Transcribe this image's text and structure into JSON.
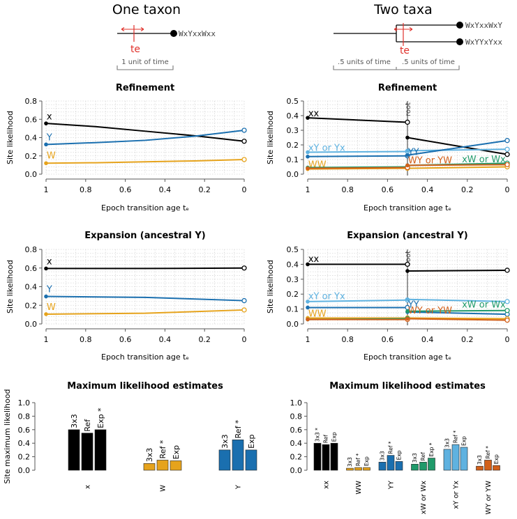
{
  "colors": {
    "x": "#000000",
    "Y": "#1a6faf",
    "W": "#e6a31c",
    "xY": "#5fb2e0",
    "xW": "#1f9a6a",
    "WY": "#d2601a",
    "te": "#e0302a",
    "grid": "#d8d8d8",
    "axis": "#555555",
    "scale": "#777777"
  },
  "trees": {
    "one": {
      "title": "One taxon",
      "tip": "WxYxxWxx",
      "te_label": "te",
      "scale": "1 unit of time"
    },
    "two": {
      "title": "Two taxa",
      "tips": [
        "WxYxxWxY",
        "WxYYxYxx"
      ],
      "te_label": "te",
      "scale_left": ".5 units of time",
      "scale_right": ".5 units of time"
    }
  },
  "chart_data": [
    {
      "id": "c1",
      "type": "line",
      "title": "Refinement",
      "xlabel": "Epoch transition age tₑ",
      "ylabel": "Site likelihood",
      "xlim": [
        1,
        0
      ],
      "ylim": [
        0,
        0.8
      ],
      "xticks": [
        "1",
        "0.8",
        "0.6",
        "0.4",
        "0.2",
        "0"
      ],
      "yticks": [
        "0.0",
        "0.2",
        "0.4",
        "0.6",
        "0.8"
      ],
      "root_line": false,
      "series": [
        {
          "name": "x",
          "color": "#000000",
          "x": [
            1,
            0.75,
            0.5,
            0.25,
            0
          ],
          "y": [
            0.555,
            0.52,
            0.47,
            0.42,
            0.36
          ],
          "lx": 0.99,
          "ly": 0.6
        },
        {
          "name": "Y",
          "color": "#1a6faf",
          "x": [
            1,
            0.75,
            0.5,
            0.25,
            0
          ],
          "y": [
            0.325,
            0.345,
            0.37,
            0.415,
            0.48
          ],
          "lx": 0.99,
          "ly": 0.37
        },
        {
          "name": "W",
          "color": "#e6a31c",
          "x": [
            1,
            0.75,
            0.5,
            0.25,
            0
          ],
          "y": [
            0.12,
            0.125,
            0.135,
            0.145,
            0.16
          ],
          "lx": 0.99,
          "ly": 0.17
        }
      ]
    },
    {
      "id": "c2",
      "type": "line",
      "title": "Refinement",
      "xlabel": "Epoch transition age tₑ",
      "ylabel": "Site likelihood",
      "xlim": [
        1,
        0
      ],
      "ylim": [
        0,
        0.5
      ],
      "xticks": [
        "1",
        "0.8",
        "0.6",
        "0.4",
        "0.2",
        "0"
      ],
      "yticks": [
        "0.0",
        "0.1",
        "0.2",
        "0.3",
        "0.4",
        "0.5"
      ],
      "root_line": true,
      "root_label": "root",
      "series": [
        {
          "name": "xx",
          "color": "#000000",
          "x": [
            1,
            0.5
          ],
          "y": [
            0.385,
            0.355
          ],
          "x2": [
            0.5,
            0
          ],
          "y2": [
            0.25,
            0.135
          ],
          "lx": 0.99,
          "ly": 0.395
        },
        {
          "name": "xY or Yx",
          "color": "#5fb2e0",
          "x": [
            1,
            0.5
          ],
          "y": [
            0.15,
            0.155
          ],
          "x2": [
            0.5,
            0
          ],
          "y2": [
            0.16,
            0.17
          ],
          "lx": 0.99,
          "ly": 0.16
        },
        {
          "name": "YY",
          "color": "#1a6faf",
          "x": [
            1,
            0.5
          ],
          "y": [
            0.12,
            0.125
          ],
          "x2": [
            0.5,
            0
          ],
          "y2": [
            0.13,
            0.23
          ],
          "lx": 0.49,
          "ly": 0.13
        },
        {
          "name": "WW",
          "color": "#e6a31c",
          "x": [
            1,
            0.5
          ],
          "y": [
            0.035,
            0.04
          ],
          "x2": [
            0.5,
            0
          ],
          "y2": [
            0.04,
            0.05
          ],
          "lx": 0.99,
          "ly": 0.045
        },
        {
          "name": "xW or Wx",
          "color": "#1f9a6a",
          "x": [
            1,
            0.5
          ],
          "y": [
            0.045,
            0.05
          ],
          "x2": [
            0.5,
            0
          ],
          "y2": [
            0.06,
            0.075
          ],
          "lx": 0.22,
          "ly": 0.08
        },
        {
          "name": "WY or YW",
          "color": "#d2601a",
          "x": [
            1,
            0.5
          ],
          "y": [
            0.04,
            0.045
          ],
          "x2": [
            0.5,
            0
          ],
          "y2": [
            0.06,
            0.065
          ],
          "lx": 0.49,
          "ly": 0.075
        }
      ]
    },
    {
      "id": "c3",
      "type": "line",
      "title": "Expansion (ancestral Y)",
      "xlabel": "Epoch transition age tₑ",
      "ylabel": "Site likelihood",
      "xlim": [
        1,
        0
      ],
      "ylim": [
        0,
        0.8
      ],
      "xticks": [
        "1",
        "0.8",
        "0.6",
        "0.4",
        "0.2",
        "0"
      ],
      "yticks": [
        "0.0",
        "0.2",
        "0.4",
        "0.6",
        "0.8"
      ],
      "root_line": false,
      "series": [
        {
          "name": "x",
          "color": "#000000",
          "x": [
            1,
            0.5,
            0
          ],
          "y": [
            0.595,
            0.595,
            0.6
          ],
          "lx": 0.99,
          "ly": 0.64
        },
        {
          "name": "Y",
          "color": "#1a6faf",
          "x": [
            1,
            0.5,
            0
          ],
          "y": [
            0.295,
            0.285,
            0.25
          ],
          "lx": 0.99,
          "ly": 0.34
        },
        {
          "name": "W",
          "color": "#e6a31c",
          "x": [
            1,
            0.5,
            0
          ],
          "y": [
            0.105,
            0.115,
            0.15
          ],
          "lx": 0.99,
          "ly": 0.15
        }
      ]
    },
    {
      "id": "c4",
      "type": "line",
      "title": "Expansion (ancestral Y)",
      "xlabel": "Epoch transition age tₑ",
      "ylabel": "Site likelihood",
      "xlim": [
        1,
        0
      ],
      "ylim": [
        0,
        0.5
      ],
      "xticks": [
        "1",
        "0.8",
        "0.6",
        "0.4",
        "0.2",
        "0"
      ],
      "yticks": [
        "0.0",
        "0.1",
        "0.2",
        "0.3",
        "0.4",
        "0.5"
      ],
      "root_line": true,
      "root_label": "root",
      "series": [
        {
          "name": "xx",
          "color": "#000000",
          "x": [
            1,
            0.5
          ],
          "y": [
            0.4,
            0.4
          ],
          "x2": [
            0.5,
            0
          ],
          "y2": [
            0.355,
            0.36
          ],
          "lx": 0.99,
          "ly": 0.415
        },
        {
          "name": "xY or Yx",
          "color": "#5fb2e0",
          "x": [
            1,
            0.5
          ],
          "y": [
            0.15,
            0.16
          ],
          "x2": [
            0.5,
            0
          ],
          "y2": [
            0.165,
            0.15
          ],
          "lx": 0.99,
          "ly": 0.165
        },
        {
          "name": "YY",
          "color": "#1a6faf",
          "x": [
            1,
            0.5
          ],
          "y": [
            0.11,
            0.11
          ],
          "x2": [
            0.5,
            0
          ],
          "y2": [
            0.08,
            0.065
          ],
          "lx": 0.49,
          "ly": 0.11
        },
        {
          "name": "WW",
          "color": "#e6a31c",
          "x": [
            1,
            0.5
          ],
          "y": [
            0.04,
            0.04
          ],
          "x2": [
            0.5,
            0
          ],
          "y2": [
            0.04,
            0.035
          ],
          "lx": 0.99,
          "ly": 0.05
        },
        {
          "name": "xW or Wx",
          "color": "#1f9a6a",
          "x": [
            1,
            0.5
          ],
          "y": [
            0.03,
            0.035
          ],
          "x2": [
            0.5,
            0
          ],
          "y2": [
            0.085,
            0.09
          ],
          "lx": 0.22,
          "ly": 0.11
        },
        {
          "name": "WY or YW",
          "color": "#d2601a",
          "x": [
            1,
            0.5
          ],
          "y": [
            0.03,
            0.03
          ],
          "x2": [
            0.5,
            0
          ],
          "y2": [
            0.035,
            0.025
          ],
          "lx": 0.49,
          "ly": 0.07
        }
      ]
    },
    {
      "id": "c5",
      "type": "bar",
      "title": "Maximum likelihood estimates",
      "ylabel": "Site maximum likelihood",
      "ylim": [
        0,
        1
      ],
      "yticks": [
        "0.0",
        "0.2",
        "0.4",
        "0.6",
        "0.8",
        "1.0"
      ],
      "groups": [
        {
          "name": "x",
          "color": "#000000",
          "bars": [
            {
              "label": "3x3",
              "value": 0.6
            },
            {
              "label": "Ref",
              "value": 0.55
            },
            {
              "label": "Exp *",
              "value": 0.6
            }
          ]
        },
        {
          "name": "W",
          "color": "#e6a31c",
          "bars": [
            {
              "label": "3x3",
              "value": 0.1
            },
            {
              "label": "Ref *",
              "value": 0.15
            },
            {
              "label": "Exp",
              "value": 0.14
            }
          ]
        },
        {
          "name": "Y",
          "color": "#1a6faf",
          "bars": [
            {
              "label": "3x3",
              "value": 0.3
            },
            {
              "label": "Ref *",
              "value": 0.45
            },
            {
              "label": "Exp",
              "value": 0.3
            }
          ]
        }
      ]
    },
    {
      "id": "c6",
      "type": "bar",
      "title": "Maximum likelihood estimates",
      "ylabel": "",
      "ylim": [
        0,
        1
      ],
      "yticks": [
        "0.0",
        "0.2",
        "0.4",
        "0.6",
        "0.8",
        "1.0"
      ],
      "groups": [
        {
          "name": "xx",
          "color": "#000000",
          "bars": [
            {
              "label": "3x3 *",
              "value": 0.4
            },
            {
              "label": "Ref",
              "value": 0.38
            },
            {
              "label": "Exp",
              "value": 0.4
            }
          ]
        },
        {
          "name": "WW",
          "color": "#e6a31c",
          "bars": [
            {
              "label": "3x3",
              "value": 0.03
            },
            {
              "label": "Ref *",
              "value": 0.04
            },
            {
              "label": "Exp",
              "value": 0.04
            }
          ]
        },
        {
          "name": "YY",
          "color": "#1a6faf",
          "bars": [
            {
              "label": "3x3",
              "value": 0.12
            },
            {
              "label": "Ref *",
              "value": 0.22
            },
            {
              "label": "Exp",
              "value": 0.13
            }
          ]
        },
        {
          "name": "xW or Wx",
          "color": "#1f9a6a",
          "bars": [
            {
              "label": "3x3",
              "value": 0.09
            },
            {
              "label": "Ref",
              "value": 0.12
            },
            {
              "label": "Exp *",
              "value": 0.18
            }
          ]
        },
        {
          "name": "xY or Yx",
          "color": "#5fb2e0",
          "bars": [
            {
              "label": "3x3",
              "value": 0.31
            },
            {
              "label": "Ref *",
              "value": 0.38
            },
            {
              "label": "Exp",
              "value": 0.34
            }
          ]
        },
        {
          "name": "WY or YW",
          "color": "#d2601a",
          "bars": [
            {
              "label": "3x3",
              "value": 0.06
            },
            {
              "label": "Ref *",
              "value": 0.15
            },
            {
              "label": "Exp",
              "value": 0.07
            }
          ]
        }
      ]
    }
  ]
}
